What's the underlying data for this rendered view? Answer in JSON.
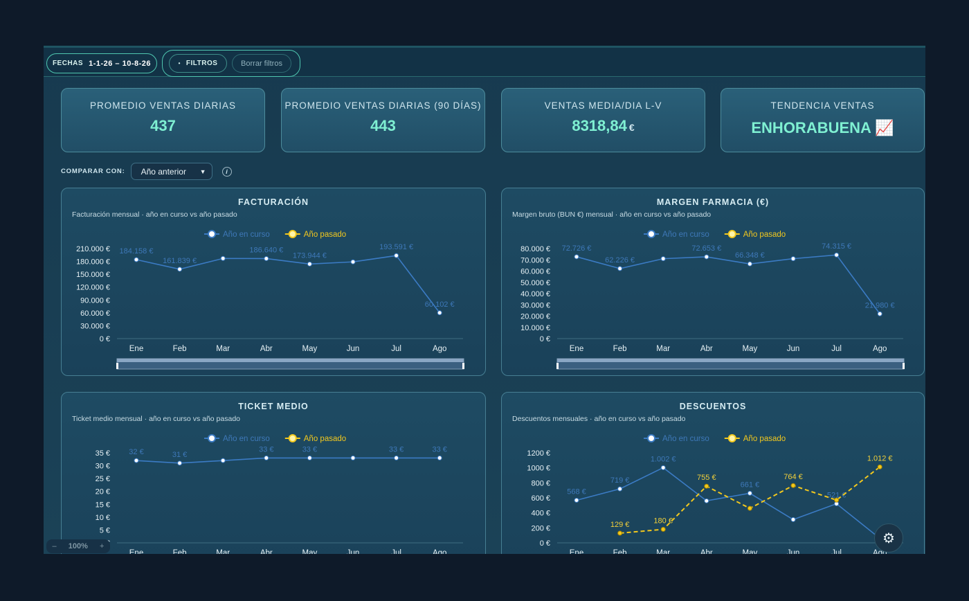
{
  "toolbar": {
    "dates_label": "FECHAS",
    "dates_value": "1-1-26 – 10-8-26",
    "filters": "FILTROS",
    "clear": "Borrar filtros"
  },
  "kpis": [
    {
      "label": "PROMEDIO VENTAS DIARIAS",
      "value": "437"
    },
    {
      "label": "PROMEDIO VENTAS DIARIAS (90 DÍAS)",
      "value": "443"
    },
    {
      "label": "VENTAS MEDIA/DIA L-V",
      "value": "8318,84",
      "unit": "€"
    },
    {
      "label": "TENDENCIA VENTAS",
      "value": "ENHORABUENA 📈"
    }
  ],
  "compare": {
    "label": "COMPARAR CON:",
    "selected": "Año anterior",
    "info": "i"
  },
  "zoom": {
    "minus": "–",
    "value": "100%",
    "plus": "+"
  },
  "chart_data": [
    {
      "type": "line",
      "title": "FACTURACIÓN",
      "subtitle": "Facturación mensual · año en curso vs año pasado",
      "categories": [
        "Ene",
        "Feb",
        "Mar",
        "Abr",
        "May",
        "Jun",
        "Jul",
        "Ago"
      ],
      "series": [
        {
          "name": "Año en curso",
          "color": "#3b7bc4",
          "values": [
            184158,
            161839,
            187000,
            186640,
            173944,
            179000,
            193591,
            60102
          ],
          "value_labels": [
            "184.158 €",
            "161.839 €",
            null,
            "186.640 €",
            "173.944 €",
            null,
            "193.591 €",
            "60.102 €"
          ]
        },
        {
          "name": "Año pasado",
          "color": "#f2c81e",
          "dashed": true,
          "values": [
            null,
            null,
            null,
            null,
            null,
            null,
            null,
            null
          ]
        }
      ],
      "ylim": [
        0,
        210000
      ],
      "yticks": [
        {
          "value": 0,
          "label": "0 €"
        },
        {
          "value": 30000,
          "label": "30.000 €"
        },
        {
          "value": 60000,
          "label": "60.000 €"
        },
        {
          "value": 90000,
          "label": "90.000 €"
        },
        {
          "value": 120000,
          "label": "120.000 €"
        },
        {
          "value": 150000,
          "label": "150.000 €"
        },
        {
          "value": 180000,
          "label": "180.000 €"
        },
        {
          "value": 210000,
          "label": "210.000 €"
        }
      ],
      "zoom_slider": true
    },
    {
      "type": "line",
      "title": "MARGEN FARMACIA (€)",
      "subtitle": "Margen bruto (BUN €) mensual · año en curso vs año pasado",
      "categories": [
        "Ene",
        "Feb",
        "Mar",
        "Abr",
        "May",
        "Jun",
        "Jul",
        "Ago"
      ],
      "series": [
        {
          "name": "Año en curso",
          "color": "#3b7bc4",
          "values": [
            72726,
            62226,
            71000,
            72653,
            66348,
            71000,
            74315,
            21980
          ],
          "value_labels": [
            "72.726 €",
            "62.226 €",
            null,
            "72.653 €",
            "66.348 €",
            null,
            "74.315 €",
            "21.980 €"
          ]
        },
        {
          "name": "Año pasado",
          "color": "#f2c81e",
          "dashed": true,
          "values": [
            null,
            null,
            null,
            null,
            null,
            null,
            null,
            null
          ]
        }
      ],
      "ylim": [
        0,
        80000
      ],
      "yticks": [
        {
          "value": 0,
          "label": "0 €"
        },
        {
          "value": 10000,
          "label": "10.000 €"
        },
        {
          "value": 20000,
          "label": "20.000 €"
        },
        {
          "value": 30000,
          "label": "30.000 €"
        },
        {
          "value": 40000,
          "label": "40.000 €"
        },
        {
          "value": 50000,
          "label": "50.000 €"
        },
        {
          "value": 60000,
          "label": "60.000 €"
        },
        {
          "value": 70000,
          "label": "70.000 €"
        },
        {
          "value": 80000,
          "label": "80.000 €"
        }
      ],
      "zoom_slider": true
    },
    {
      "type": "line",
      "title": "TICKET MEDIO",
      "subtitle": "Ticket medio mensual · año en curso vs año pasado",
      "categories": [
        "Ene",
        "Feb",
        "Mar",
        "Abr",
        "May",
        "Jun",
        "Jul",
        "Ago"
      ],
      "series": [
        {
          "name": "Año en curso",
          "color": "#3b7bc4",
          "values": [
            32,
            31,
            32,
            33,
            33,
            33,
            33,
            33
          ],
          "value_labels": [
            "32 €",
            "31 €",
            null,
            "33 €",
            "33 €",
            null,
            "33 €",
            "33 €"
          ]
        },
        {
          "name": "Año pasado",
          "color": "#f2c81e",
          "dashed": true,
          "values": [
            null,
            null,
            null,
            null,
            null,
            null,
            null,
            null
          ]
        }
      ],
      "ylim": [
        0,
        35
      ],
      "yticks": [
        {
          "value": 0,
          "label": "0 €"
        },
        {
          "value": 5,
          "label": "5 €"
        },
        {
          "value": 10,
          "label": "10 €"
        },
        {
          "value": 15,
          "label": "15 €"
        },
        {
          "value": 20,
          "label": "20 €"
        },
        {
          "value": 25,
          "label": "25 €"
        },
        {
          "value": 30,
          "label": "30 €"
        },
        {
          "value": 35,
          "label": "35 €"
        }
      ]
    },
    {
      "type": "line",
      "title": "DESCUENTOS",
      "subtitle": "Descuentos mensuales · año en curso vs año pasado",
      "categories": [
        "Ene",
        "Feb",
        "Mar",
        "Abr",
        "May",
        "Jun",
        "Jul",
        "Ago"
      ],
      "series": [
        {
          "name": "Año en curso",
          "color": "#3b7bc4",
          "values": [
            568,
            719,
            1002,
            560,
            661,
            310,
            521,
            60
          ],
          "value_labels": [
            "568 €",
            "719 €",
            "1.002 €",
            null,
            "661 €",
            null,
            "521 €",
            null
          ]
        },
        {
          "name": "Año pasado",
          "color": "#f2c81e",
          "dashed": true,
          "values": [
            null,
            129,
            180,
            755,
            460,
            764,
            570,
            1012
          ],
          "value_labels": [
            null,
            "129 €",
            "180 €",
            "755 €",
            null,
            "764 €",
            null,
            "1.012 €"
          ]
        }
      ],
      "ylim": [
        0,
        1200
      ],
      "yticks": [
        {
          "value": 0,
          "label": "0 €"
        },
        {
          "value": 200,
          "label": "200 €"
        },
        {
          "value": 400,
          "label": "400 €"
        },
        {
          "value": 600,
          "label": "600 €"
        },
        {
          "value": 800,
          "label": "800 €"
        },
        {
          "value": 1000,
          "label": "1000 €"
        },
        {
          "value": 1200,
          "label": "1200 €"
        }
      ]
    }
  ]
}
